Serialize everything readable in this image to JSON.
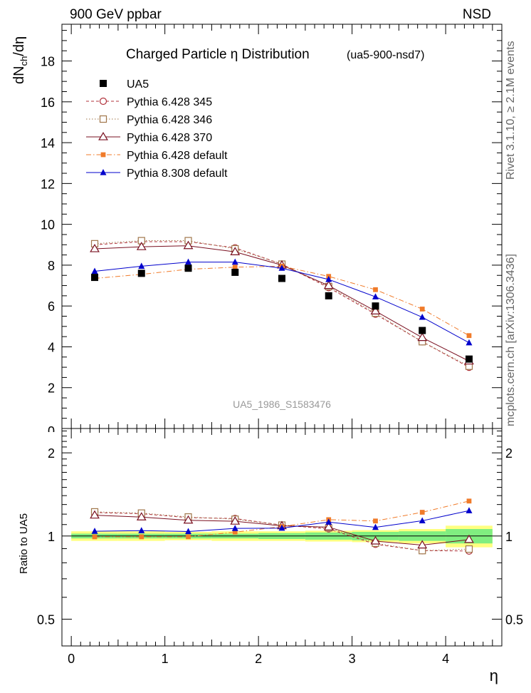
{
  "header": {
    "left": "900 GeV ppbar",
    "right": "NSD"
  },
  "side": {
    "rivet": "Rivet 3.1.10, ≥ 2.1M events",
    "mcplots": "mcplots.cern.ch [arXiv:1306.3436]"
  },
  "chart_data": {
    "type": "scatter",
    "title": "Charged Particle  η Distribution",
    "subtitle": "(ua5-900-nsd7)",
    "watermark": "UA5_1986_S1583476",
    "xlabel": "η",
    "ylabel_main": "dN_ch/dη",
    "ylabel_ratio": "Ratio to UA5",
    "xlim": [
      -0.1,
      4.6
    ],
    "ylim_main": [
      0,
      19.8
    ],
    "ylim_ratio": [
      0.4,
      2.45
    ],
    "ratio_log_scale": true,
    "x_ticks": [
      0,
      1,
      2,
      3,
      4
    ],
    "y_ticks_main": [
      2,
      4,
      6,
      8,
      10,
      12,
      14,
      16,
      18
    ],
    "y_ticks_ratio": [
      0.5,
      1,
      2
    ],
    "y_tick_labels_main": [
      "2",
      "4",
      "6",
      "8",
      "10",
      "12",
      "14",
      "16",
      "18"
    ],
    "y_tick_labels_ratio": [
      "0.5",
      "1",
      "2"
    ],
    "x": [
      0.25,
      0.75,
      1.25,
      1.75,
      2.25,
      2.75,
      3.25,
      3.75,
      4.25
    ],
    "reference": {
      "name": "UA5",
      "values": [
        7.4,
        7.6,
        7.85,
        7.65,
        7.35,
        6.5,
        6.0,
        4.8,
        3.4
      ],
      "band_yellow": [
        0.04,
        0.04,
        0.035,
        0.04,
        0.04,
        0.045,
        0.05,
        0.06,
        0.09
      ],
      "band_green": [
        0.02,
        0.02,
        0.02,
        0.02,
        0.025,
        0.03,
        0.035,
        0.04,
        0.06
      ]
    },
    "series": [
      {
        "name": "Pythia 6.428 345",
        "color": "#b0303a",
        "marker": "open-circle",
        "line": "dashed",
        "values": [
          9.0,
          9.15,
          9.15,
          8.85,
          8.05,
          6.9,
          5.6,
          4.25,
          3.0
        ]
      },
      {
        "name": "Pythia 6.428 346",
        "color": "#a0764a",
        "marker": "open-square",
        "line": "dotted",
        "values": [
          9.05,
          9.2,
          9.2,
          8.8,
          8.05,
          6.95,
          5.65,
          4.25,
          3.05
        ]
      },
      {
        "name": "Pythia 6.428 370",
        "color": "#7a1020",
        "marker": "open-triangle",
        "line": "solid",
        "values": [
          8.8,
          8.9,
          8.95,
          8.65,
          8.0,
          7.0,
          5.75,
          4.45,
          3.3
        ]
      },
      {
        "name": "Pythia 6.428 default",
        "color": "#f07b2a",
        "marker": "filled-square",
        "line": "dashdot",
        "values": [
          7.35,
          7.55,
          7.8,
          7.9,
          7.95,
          7.45,
          6.8,
          5.85,
          4.55
        ]
      },
      {
        "name": "Pythia 8.308 default",
        "color": "#0000cc",
        "marker": "filled-triangle",
        "line": "solid",
        "values": [
          7.7,
          7.95,
          8.15,
          8.15,
          7.85,
          7.3,
          6.45,
          5.45,
          4.2
        ]
      }
    ]
  }
}
